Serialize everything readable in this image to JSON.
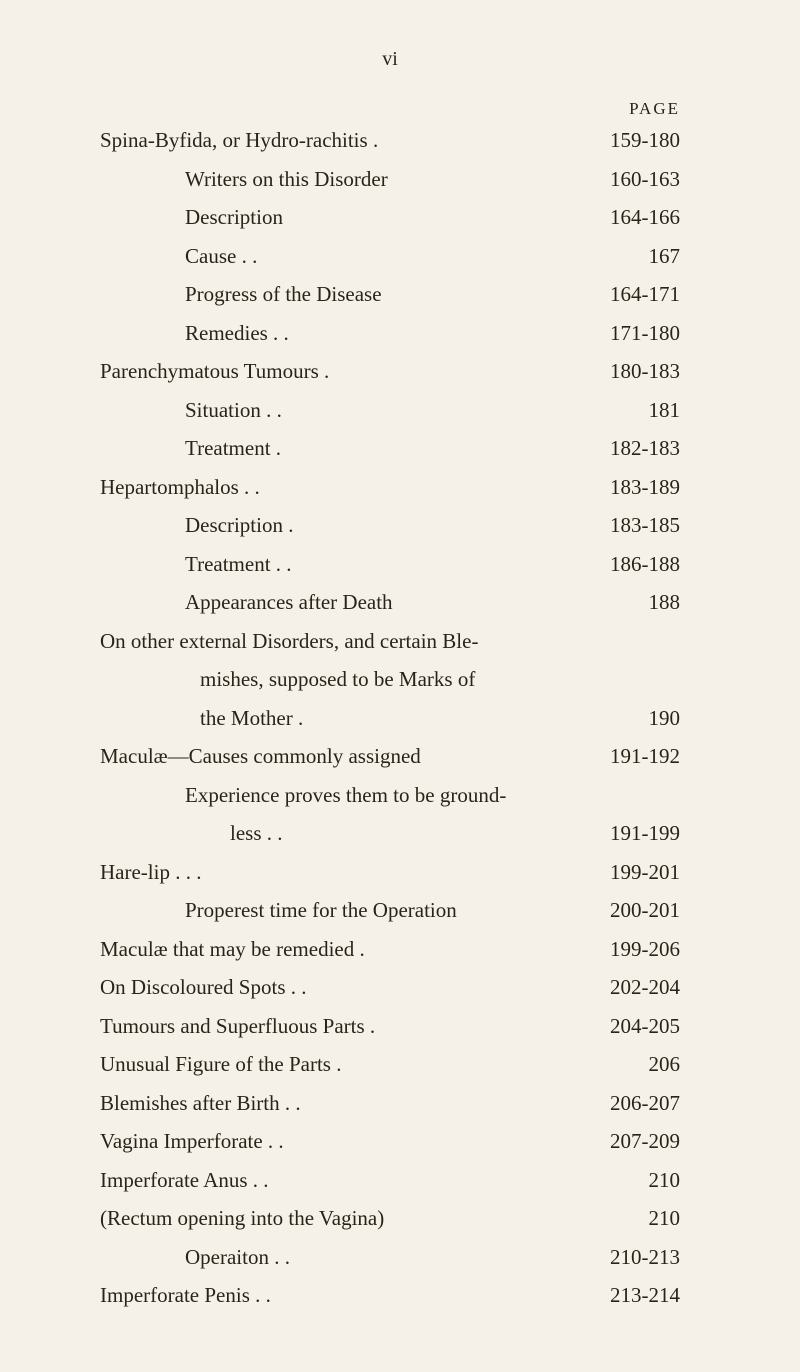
{
  "pageNumber": "vi",
  "headerLabel": "PAGE",
  "entries": [
    {
      "text": "Spina-Byfida, or Hydro-rachitis   .",
      "page": "159-180",
      "indent": 0
    },
    {
      "text": "Writers on this Disorder",
      "page": "160-163",
      "indent": 1
    },
    {
      "text": "Description",
      "page": "164-166",
      "indent": 1
    },
    {
      "text": "Cause       .             .",
      "page": "167",
      "indent": 1
    },
    {
      "text": "Progress of the Disease",
      "page": "164-171",
      "indent": 1
    },
    {
      "text": "Remedies    .             .",
      "page": "171-180",
      "indent": 1
    },
    {
      "text": "Parenchymatous Tumours         .",
      "page": "180-183",
      "indent": 0
    },
    {
      "text": "Situation    .             .",
      "page": "181",
      "indent": 1
    },
    {
      "text": "Treatment           .",
      "page": "182-183",
      "indent": 1
    },
    {
      "text": "Hepartomphalos            .             .",
      "page": "183-189",
      "indent": 0
    },
    {
      "text": "Description           .",
      "page": "183-185",
      "indent": 1
    },
    {
      "text": "Treatment  .             .",
      "page": "186-188",
      "indent": 1
    },
    {
      "text": "Appearances after Death",
      "page": "188",
      "indent": 1
    },
    {
      "text": "On other external Disorders, and certain Ble-",
      "page": "",
      "indent": 0
    },
    {
      "text": "mishes, supposed to be Marks of",
      "page": "",
      "indent": 2,
      "continuation": true
    },
    {
      "text": "the Mother           .",
      "page": "190",
      "indent": 2,
      "continuation": true
    },
    {
      "text": "Maculæ—Causes commonly assigned",
      "page": "191-192",
      "indent": 0
    },
    {
      "text": "Experience proves them to be ground-",
      "page": "",
      "indent": 1
    },
    {
      "text": "less         .             .",
      "page": "191-199",
      "indent": 2,
      "continuation": true,
      "more": true
    },
    {
      "text": "Hare-lip         .             .             .",
      "page": "199-201",
      "indent": 0
    },
    {
      "text": "Properest time for the Operation",
      "page": "200-201",
      "indent": 1
    },
    {
      "text": "Maculæ that may be remedied       .",
      "page": "199-206",
      "indent": 0
    },
    {
      "text": "On Discoloured Spots     .             .",
      "page": "202-204",
      "indent": 0
    },
    {
      "text": "Tumours and Superfluous Parts    .",
      "page": "204-205",
      "indent": 0
    },
    {
      "text": "Unusual Figure of the Parts           .",
      "page": "206",
      "indent": 0
    },
    {
      "text": "Blemishes after Birth    .             .",
      "page": "206-207",
      "indent": 0
    },
    {
      "text": "Vagina Imperforate        .             .",
      "page": "207-209",
      "indent": 0
    },
    {
      "text": "Imperforate Anus           .             .",
      "page": "210",
      "indent": 0
    },
    {
      "text": "(Rectum opening into the Vagina)",
      "page": "210",
      "indent": 0
    },
    {
      "text": "Operaiton   .             .",
      "page": "210-213",
      "indent": 1
    },
    {
      "text": "Imperforate Penis           .             .",
      "page": "213-214",
      "indent": 0
    }
  ]
}
